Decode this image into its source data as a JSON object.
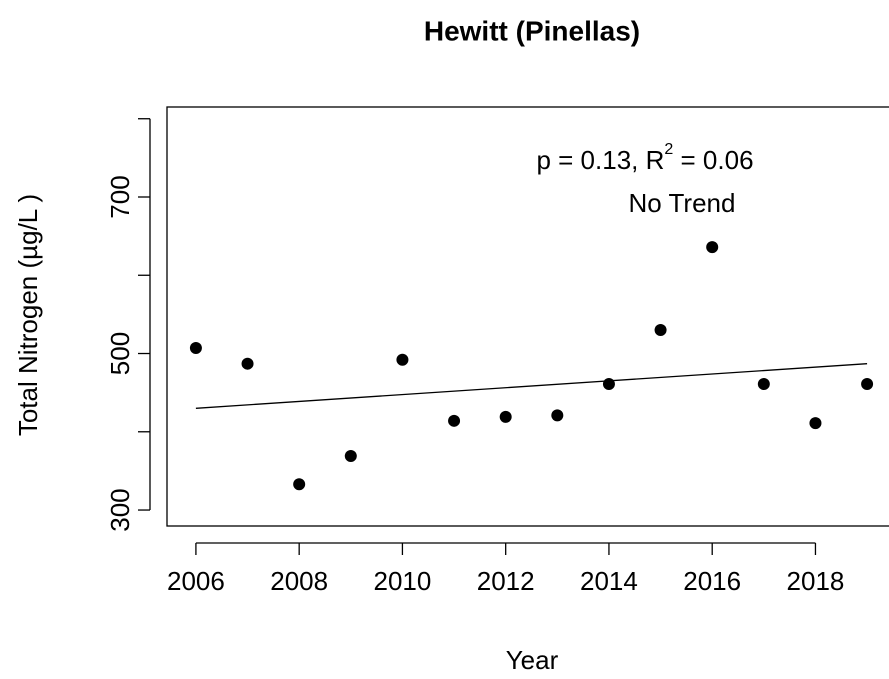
{
  "chart_data": {
    "type": "scatter",
    "title": "Hewitt (Pinellas)",
    "x_label": "Year",
    "y_label": "Total Nitrogen (µg/L )",
    "x": [
      2006,
      2007,
      2008,
      2009,
      2010,
      2011,
      2012,
      2013,
      2014,
      2015,
      2016,
      2017,
      2018,
      2019
    ],
    "values": [
      507,
      487,
      333,
      369,
      492,
      414,
      419,
      421,
      461,
      530,
      636,
      461,
      411,
      461
    ],
    "color": "#000000",
    "trend": {
      "x": [
        2006,
        2019
      ],
      "values": [
        430,
        487
      ]
    },
    "annotation": {
      "text": "p = 0.13, R",
      "sup": "2",
      "after": " = 0.06",
      "trend_label": "No Trend"
    },
    "xlim": [
      2005.44,
      2019.56
    ],
    "ylim": [
      279.6,
      815
    ],
    "xticks": [
      2006,
      2008,
      2010,
      2012,
      2014,
      2016,
      2018
    ],
    "yticks": [
      300,
      {
        "value": 400,
        "label": null
      },
      500,
      {
        "value": 600,
        "label": null
      },
      700,
      {
        "value": 800,
        "label": null
      }
    ],
    "grid": false
  }
}
